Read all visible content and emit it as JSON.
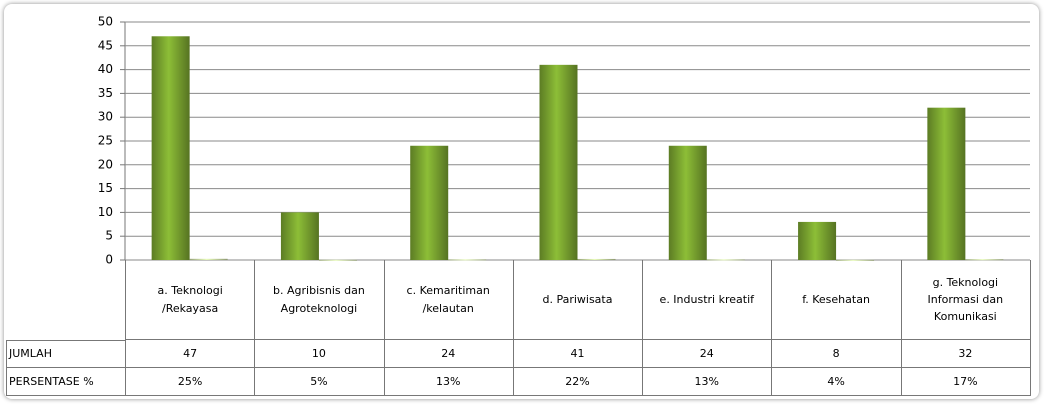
{
  "chart_data": {
    "type": "bar",
    "categories": [
      "a. Teknologi /Rekayasa",
      "b. Agribisnis dan Agroteknologi",
      "c. Kemaritiman /kelautan",
      "d. Pariwisata",
      "e. Industri kreatif",
      "f. Kesehatan",
      "g. Teknologi Informasi dan Komunikasi"
    ],
    "series": [
      {
        "name": "JUMLAH",
        "color": "#7ba530",
        "values": [
          47,
          10,
          24,
          41,
          24,
          8,
          32
        ]
      },
      {
        "name": "PERSENTASE %",
        "color": "#c9d9a2",
        "values": [
          0.25,
          0.05,
          0.13,
          0.22,
          0.13,
          0.04,
          0.17
        ],
        "value_labels": [
          "25%",
          "5%",
          "13%",
          "22%",
          "13%",
          "4%",
          "17%"
        ]
      }
    ],
    "ylim": [
      0,
      50
    ],
    "yticks": [
      0,
      5,
      10,
      15,
      20,
      25,
      30,
      35,
      40,
      45,
      50
    ],
    "grid": true
  }
}
